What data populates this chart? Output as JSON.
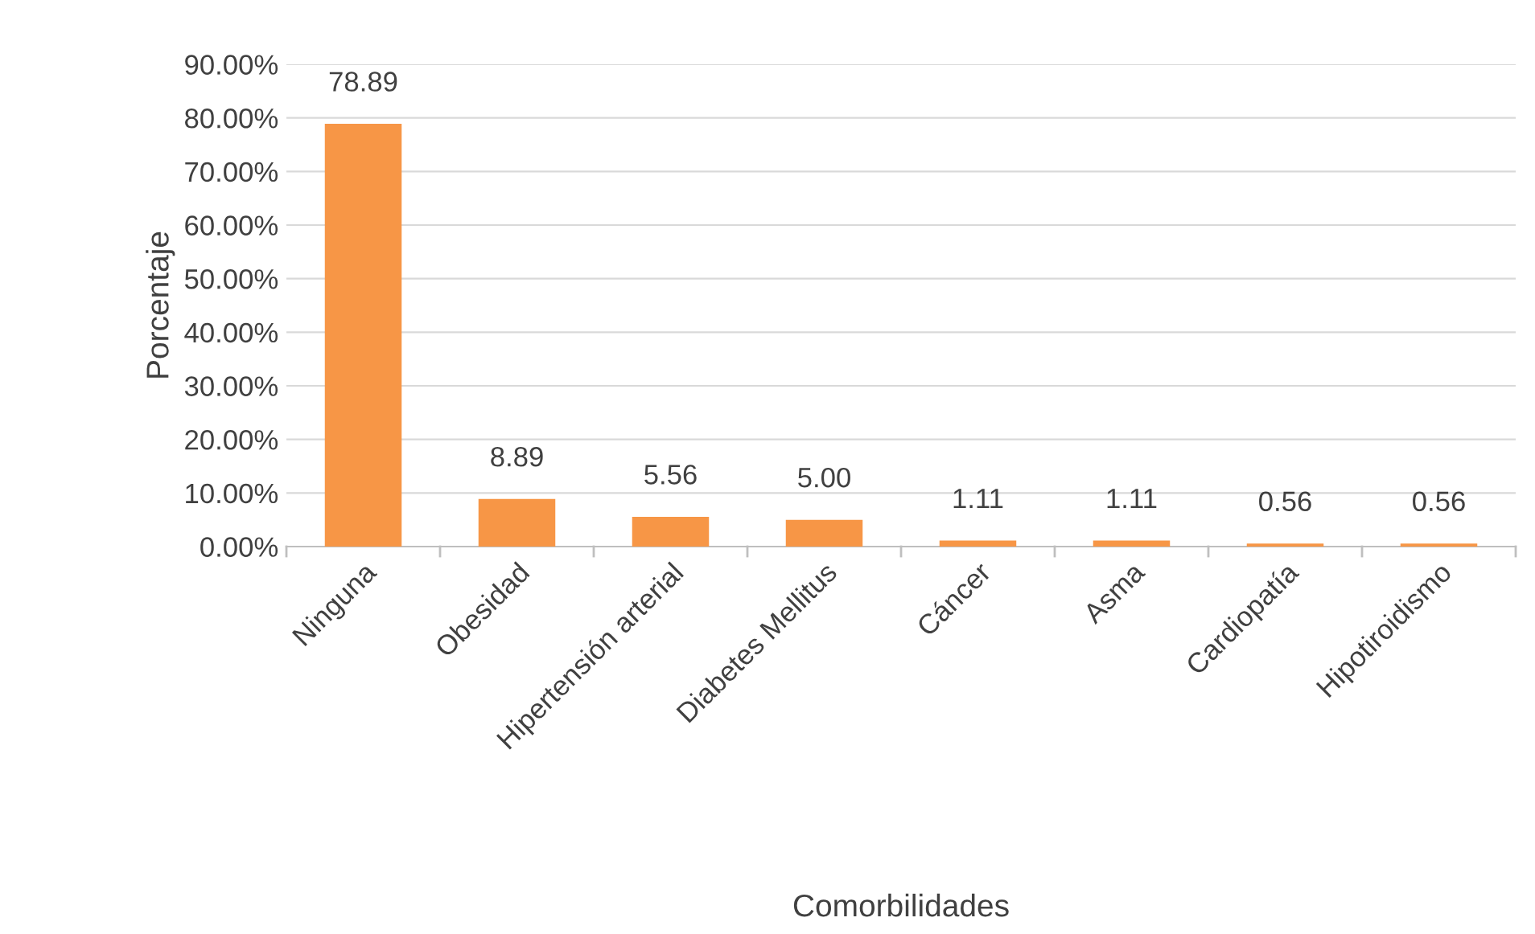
{
  "chart_data": {
    "type": "bar",
    "xlabel": "Comorbilidades",
    "ylabel": "Porcentaje",
    "categories": [
      "Ninguna",
      "Obesidad",
      "Hipertensión arterial",
      "Diabetes Mellitus",
      "Cáncer",
      "Asma",
      "Cardiopatía",
      "Hipotiroidismo"
    ],
    "values": [
      78.89,
      8.89,
      5.56,
      5.0,
      1.11,
      1.11,
      0.56,
      0.56
    ],
    "value_labels": [
      "78.89",
      "8.89",
      "5.56",
      "5.00",
      "1.11",
      "1.11",
      "0.56",
      "0.56"
    ],
    "color": "#f79646",
    "ylim": [
      0,
      90
    ],
    "yticks": [
      {
        "value": 0,
        "label": "0.00%"
      },
      {
        "value": 10,
        "label": "10.00%"
      },
      {
        "value": 20,
        "label": "20.00%"
      },
      {
        "value": 30,
        "label": "30.00%"
      },
      {
        "value": 40,
        "label": "40.00%"
      },
      {
        "value": 50,
        "label": "50.00%"
      },
      {
        "value": 60,
        "label": "60.00%"
      },
      {
        "value": 70,
        "label": "70.00%"
      },
      {
        "value": 80,
        "label": "80.00%"
      },
      {
        "value": 90,
        "label": "90.00%"
      }
    ],
    "grid": "y"
  }
}
